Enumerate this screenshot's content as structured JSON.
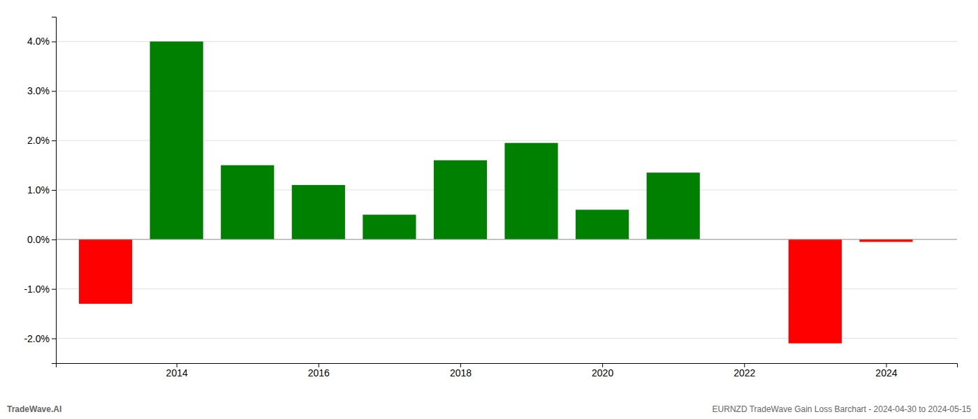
{
  "chart_data": {
    "type": "bar",
    "x": [
      2013,
      2014,
      2015,
      2016,
      2017,
      2018,
      2019,
      2020,
      2021,
      2022,
      2023,
      2024
    ],
    "values": [
      -1.3,
      4.0,
      1.5,
      1.1,
      0.5,
      1.6,
      1.95,
      0.6,
      1.35,
      0.0,
      -2.1,
      -0.05
    ],
    "colors": [
      "#ff0000",
      "#008000",
      "#008000",
      "#008000",
      "#008000",
      "#008000",
      "#008000",
      "#008000",
      "#008000",
      "#008000",
      "#ff0000",
      "#ff0000"
    ],
    "xlim": [
      2012.3,
      2025.0
    ],
    "xticks": [
      2014,
      2016,
      2018,
      2020,
      2022,
      2024
    ],
    "ylim": [
      -2.5,
      4.5
    ],
    "yticks": [
      {
        "value": -2.0,
        "label": "-2.0%"
      },
      {
        "value": -1.0,
        "label": "-1.0%"
      },
      {
        "value": 0.0,
        "label": "0.0%"
      },
      {
        "value": 1.0,
        "label": "1.0%"
      },
      {
        "value": 2.0,
        "label": "2.0%"
      },
      {
        "value": 3.0,
        "label": "3.0%"
      },
      {
        "value": 4.0,
        "label": "4.0%"
      }
    ],
    "grid": true,
    "annotations": [
      "TradeWave.AI",
      "EURNZD TradeWave Gain Loss Barchart - 2024-04-30 to 2024-05-15"
    ]
  }
}
